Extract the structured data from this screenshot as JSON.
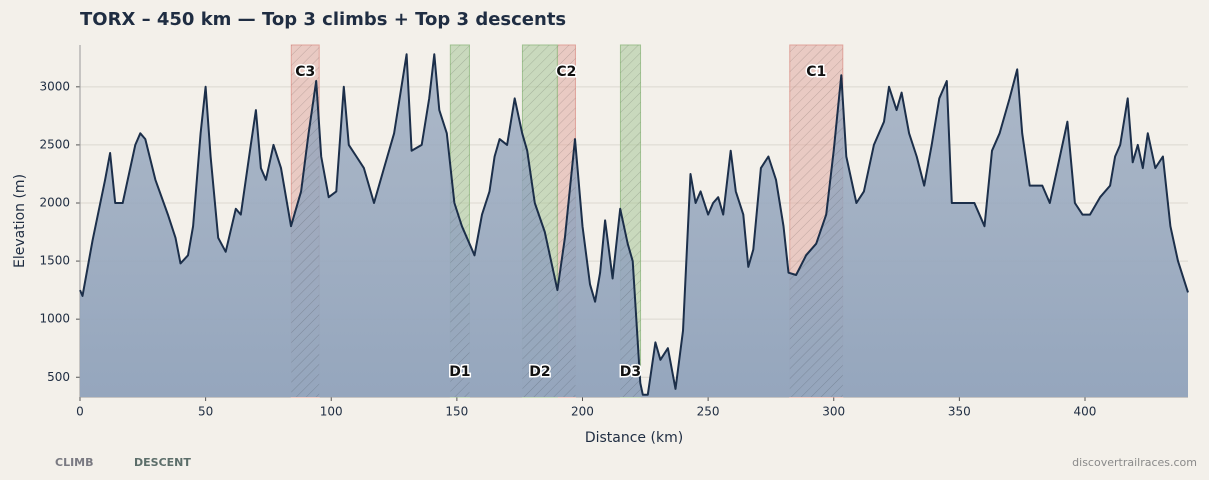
{
  "chart_data": {
    "type": "area",
    "title": "TORX – 450 km — Top 3 climbs + Top 3 descents",
    "x_label": "Distance (km)",
    "y_label": "Elevation (m)",
    "source": "discovertrailraces.com",
    "color": "#1c2f4a",
    "fill": "#95a6bd",
    "grid": true,
    "xlim": [
      0,
      441
    ],
    "ylim": [
      330,
      3360
    ],
    "xticks": [
      0,
      50,
      100,
      150,
      200,
      250,
      300,
      350,
      400
    ],
    "yticks": [
      500,
      1000,
      1500,
      2000,
      2500,
      3000
    ],
    "x": [
      0,
      1,
      5,
      10,
      12,
      14,
      17,
      19,
      22,
      24,
      26,
      30,
      35,
      38,
      40,
      43,
      45,
      48,
      50,
      52,
      55,
      58,
      62,
      64,
      68,
      70,
      72,
      74,
      77,
      80,
      84,
      88,
      91,
      94,
      96,
      99,
      102,
      105,
      107,
      110,
      113,
      117,
      121,
      125,
      130,
      132,
      136,
      139,
      141,
      143,
      146,
      149,
      152,
      157,
      160,
      163,
      165,
      167,
      170,
      173,
      176,
      178,
      181,
      185,
      190,
      193,
      197,
      200,
      203,
      205,
      207,
      209,
      212,
      215,
      218,
      220,
      223,
      224,
      226,
      229,
      231,
      234,
      237,
      240,
      243,
      245,
      247,
      250,
      252,
      254,
      256,
      259,
      261,
      264,
      266,
      268,
      271,
      274,
      277,
      280,
      282,
      285,
      289,
      293,
      297,
      300,
      303,
      305,
      309,
      312,
      316,
      320,
      322,
      325,
      327,
      330,
      333,
      336,
      339,
      342,
      345,
      347,
      352,
      356,
      360,
      363,
      366,
      370,
      373,
      375,
      378,
      383,
      386,
      390,
      393,
      396,
      399,
      402,
      406,
      410,
      412,
      414,
      417,
      419,
      421,
      423,
      425,
      428,
      431,
      434,
      437,
      441
    ],
    "values": [
      1250,
      1200,
      1680,
      2200,
      2430,
      2000,
      2000,
      2200,
      2500,
      2600,
      2550,
      2200,
      1900,
      1700,
      1480,
      1550,
      1800,
      2600,
      3000,
      2400,
      1700,
      1580,
      1950,
      1900,
      2500,
      2800,
      2300,
      2200,
      2500,
      2300,
      1800,
      2100,
      2600,
      3050,
      2400,
      2050,
      2100,
      3000,
      2500,
      2400,
      2300,
      2000,
      2300,
      2600,
      3280,
      2450,
      2500,
      2900,
      3280,
      2800,
      2600,
      2000,
      1800,
      1550,
      1900,
      2100,
      2400,
      2550,
      2500,
      2900,
      2600,
      2450,
      2000,
      1750,
      1250,
      1700,
      2550,
      1800,
      1300,
      1150,
      1400,
      1850,
      1350,
      1950,
      1650,
      1500,
      450,
      350,
      350,
      800,
      650,
      750,
      400,
      900,
      2250,
      2000,
      2100,
      1900,
      2000,
      2050,
      1900,
      2450,
      2100,
      1900,
      1450,
      1600,
      2300,
      2400,
      2200,
      1800,
      1400,
      1380,
      1550,
      1650,
      1900,
      2450,
      3100,
      2400,
      2000,
      2100,
      2500,
      2700,
      3000,
      2800,
      2950,
      2600,
      2400,
      2150,
      2500,
      2900,
      3050,
      2000,
      2000,
      2000,
      1800,
      2450,
      2600,
      2900,
      3150,
      2600,
      2150,
      2150,
      2000,
      2400,
      2700,
      2000,
      1900,
      1900,
      2050,
      2150,
      2400,
      2500,
      2900,
      2350,
      2500,
      2300,
      2600,
      2300,
      2400,
      1800,
      1500,
      1230
    ],
    "highlights": [
      {
        "name": "CLIMB",
        "color": "#e0a39b",
        "bands": [
          {
            "label": "C1",
            "start": 282.5,
            "end": 303.6
          },
          {
            "label": "C2",
            "start": 190,
            "end": 197.2
          },
          {
            "label": "C3",
            "start": 84.1,
            "end": 95.2
          }
        ]
      },
      {
        "name": "DESCENT",
        "color": "#9fc190",
        "bands": [
          {
            "label": "D1",
            "start": 147.4,
            "end": 155
          },
          {
            "label": "D2",
            "start": 176.1,
            "end": 190
          },
          {
            "label": "D3",
            "start": 215.1,
            "end": 223.1
          }
        ]
      }
    ]
  }
}
